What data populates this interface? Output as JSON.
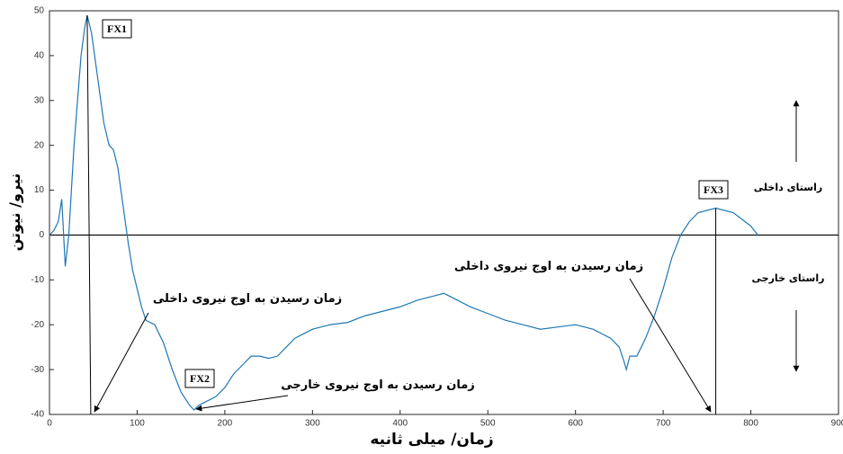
{
  "chart_data": {
    "type": "line",
    "x_label": "زمان/ میلی ثانیه",
    "y_label": "نیرو/ نیوتن",
    "x": [
      0,
      5,
      10,
      14,
      18,
      22,
      25,
      28,
      32,
      36,
      40,
      43,
      48,
      55,
      62,
      68,
      73,
      78,
      85,
      90,
      95,
      100,
      105,
      110,
      120,
      125,
      130,
      140,
      150,
      160,
      165,
      170,
      180,
      190,
      200,
      210,
      220,
      230,
      240,
      250,
      260,
      270,
      280,
      290,
      300,
      320,
      340,
      360,
      380,
      400,
      420,
      440,
      450,
      460,
      480,
      500,
      520,
      540,
      560,
      580,
      600,
      620,
      640,
      650,
      655,
      658,
      662,
      670,
      680,
      690,
      700,
      710,
      720,
      730,
      740,
      760,
      780,
      800,
      808
    ],
    "values": [
      0,
      1,
      3,
      8,
      -7,
      0,
      10,
      20,
      30,
      40,
      46,
      49,
      45,
      35,
      25,
      20,
      19,
      15,
      5,
      -2,
      -8,
      -12,
      -16,
      -19,
      -20,
      -22,
      -24,
      -30,
      -35,
      -38,
      -39,
      -38,
      -37,
      -36,
      -34,
      -31,
      -29,
      -27,
      -27,
      -27.5,
      -27,
      -25,
      -23,
      -22,
      -21,
      -20,
      -19.5,
      -18,
      -17,
      -16,
      -14.5,
      -13.5,
      -13,
      -14,
      -16,
      -17.5,
      -19,
      -20,
      -21,
      -20.5,
      -20,
      -21,
      -23,
      -25,
      -28,
      -30,
      -27,
      -27,
      -23,
      -18,
      -12,
      -5,
      0,
      3,
      5,
      6,
      5,
      2,
      0
    ],
    "color": "#1f77b4",
    "xlim": [
      0,
      900
    ],
    "xticks": [
      0,
      100,
      200,
      300,
      400,
      500,
      600,
      700,
      800,
      900
    ],
    "ylim": [
      -40,
      50
    ],
    "yticks": [
      -40,
      -30,
      -20,
      -10,
      0,
      10,
      20,
      30,
      40,
      50
    ],
    "peak_labels": [
      "FX1",
      "FX2",
      "FX3"
    ],
    "arrow_labels": [
      "زمان رسیدن به اوج نیروی داخلی",
      "زمان رسیدن به اوج نیروی خارجی",
      "زمان رسیدن به اوج نیروی داخلی"
    ],
    "direction_labels": [
      "راستای داخلی",
      "راستای خارجی"
    ]
  }
}
